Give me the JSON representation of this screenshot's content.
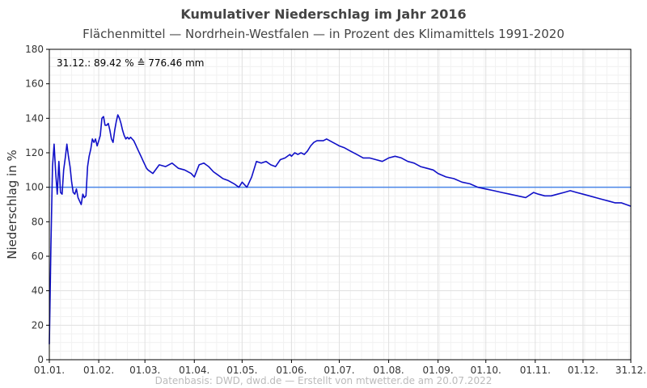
{
  "title": "Kumulativer Niederschlag im Jahr 2016",
  "subtitle": "Flächenmittel — Nordrhein-Westfalen — in Prozent des Klimamittels 1991-2020",
  "footer": "Datenbasis: DWD, dwd.de — Erstellt von mtwetter.de am 20.07.2022",
  "colors": {
    "series": "#1010c8",
    "reference": "#4a86e8",
    "grid": "#e0e0e0",
    "axis": "#000000"
  },
  "chart_data": {
    "type": "line",
    "ylabel": "Niederschlag in %",
    "xlabel": "",
    "ylim": [
      0,
      180
    ],
    "yticks": [
      0,
      20,
      40,
      60,
      80,
      100,
      120,
      140,
      160,
      180
    ],
    "xlim": [
      1,
      366
    ],
    "xticks": [
      {
        "day": 1,
        "label": "01.01."
      },
      {
        "day": 32,
        "label": "01.02."
      },
      {
        "day": 61,
        "label": "01.03."
      },
      {
        "day": 92,
        "label": "01.04."
      },
      {
        "day": 122,
        "label": "01.05."
      },
      {
        "day": 153,
        "label": "01.06."
      },
      {
        "day": 183,
        "label": "01.07."
      },
      {
        "day": 214,
        "label": "01.08."
      },
      {
        "day": 245,
        "label": "01.09."
      },
      {
        "day": 275,
        "label": "01.10."
      },
      {
        "day": 306,
        "label": "01.11."
      },
      {
        "day": 336,
        "label": "01.12."
      },
      {
        "day": 366,
        "label": "31.12."
      }
    ],
    "grid": true,
    "reference_line": 100,
    "annotation": "31.12.:  89.42 % ≙ 776.46 mm",
    "series": [
      {
        "x": [
          1,
          2,
          3,
          4,
          5,
          6,
          7,
          8,
          9,
          10,
          11,
          12,
          13,
          14,
          15,
          16,
          17,
          18,
          19,
          20,
          21,
          22,
          23,
          24,
          25,
          26,
          27,
          28,
          29,
          30,
          31,
          32,
          33,
          34,
          35,
          36,
          37,
          38,
          39,
          40,
          41,
          42,
          43,
          44,
          45,
          46,
          47,
          48,
          49,
          50,
          51,
          52,
          53,
          54,
          55,
          56,
          57,
          58,
          59,
          60,
          61,
          62,
          63,
          66,
          70,
          74,
          78,
          82,
          86,
          90,
          92,
          95,
          98,
          101,
          104,
          107,
          110,
          113,
          117,
          120,
          122,
          125,
          128,
          131,
          134,
          137,
          140,
          143,
          146,
          149,
          152,
          153,
          155,
          157,
          159,
          161,
          163,
          165,
          167,
          169,
          171,
          173,
          175,
          177,
          179,
          181,
          183,
          186,
          190,
          194,
          198,
          202,
          206,
          210,
          214,
          218,
          222,
          226,
          230,
          234,
          238,
          242,
          245,
          250,
          255,
          260,
          265,
          270,
          275,
          280,
          285,
          290,
          295,
          300,
          305,
          308,
          312,
          316,
          320,
          324,
          328,
          332,
          336,
          340,
          344,
          348,
          352,
          356,
          360,
          363,
          366
        ],
        "y": [
          9,
          67,
          112,
          125,
          108,
          96,
          115,
          97,
          96,
          110,
          117,
          125,
          118,
          112,
          103,
          97,
          96,
          99,
          94,
          92,
          90,
          96,
          94,
          95,
          112,
          118,
          122,
          128,
          126,
          128,
          124,
          127,
          130,
          140,
          141,
          136,
          136,
          137,
          133,
          128,
          126,
          133,
          138,
          142,
          140,
          137,
          133,
          130,
          128,
          129,
          128,
          129,
          128,
          127,
          125,
          123,
          121,
          119,
          117,
          115,
          113,
          111,
          110,
          108,
          113,
          112,
          114,
          111,
          110,
          108,
          106,
          113,
          114,
          112,
          109,
          107,
          105,
          104,
          102,
          100,
          103,
          100,
          106,
          115,
          114,
          115,
          113,
          112,
          116,
          117,
          119,
          118,
          120,
          119,
          120,
          119,
          121,
          124,
          126,
          127,
          127,
          127,
          128,
          127,
          126,
          125,
          124,
          123,
          121,
          119,
          117,
          117,
          116,
          115,
          117,
          118,
          117,
          115,
          114,
          112,
          111,
          110,
          108,
          106,
          105,
          103,
          102,
          100,
          99,
          98,
          97,
          96,
          95,
          94,
          97,
          96,
          95,
          95,
          96,
          97,
          98,
          97,
          96,
          95,
          94,
          93,
          92,
          91,
          91,
          90,
          89
        ]
      }
    ]
  }
}
